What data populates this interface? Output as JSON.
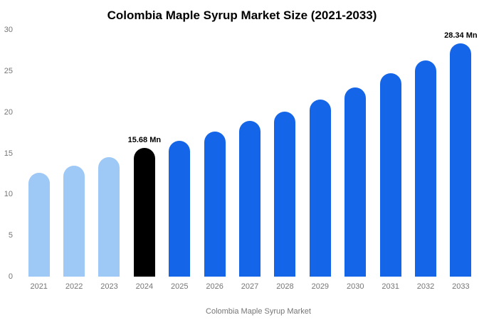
{
  "chart_data": {
    "type": "bar",
    "title": "Colombia Maple Syrup Market Size (2021-2033)",
    "categories": [
      "2021",
      "2022",
      "2023",
      "2024",
      "2025",
      "2026",
      "2027",
      "2028",
      "2029",
      "2030",
      "2031",
      "2032",
      "2033"
    ],
    "values": [
      12.6,
      13.5,
      14.5,
      15.68,
      16.5,
      17.6,
      18.9,
      20.1,
      21.5,
      23.0,
      24.7,
      26.3,
      28.34
    ],
    "bar_labels": [
      "",
      "",
      "",
      "15.68 Mn",
      "",
      "",
      "",
      "",
      "",
      "",
      "",
      "",
      "28.34 Mn"
    ],
    "bar_colors": [
      "#9ec9f6",
      "#9ec9f6",
      "#9ec9f6",
      "#000000",
      "#1565e8",
      "#1565e8",
      "#1565e8",
      "#1565e8",
      "#1565e8",
      "#1565e8",
      "#1565e8",
      "#1565e8",
      "#1565e8"
    ],
    "colors": {
      "historical": "#9ec9f6",
      "base_year": "#000000",
      "forecast": "#1565e8"
    },
    "xlabel": "",
    "ylabel": "",
    "ylim": [
      0,
      30
    ],
    "yticks": [
      0,
      5,
      10,
      15,
      20,
      25,
      30
    ],
    "grid": false,
    "legend_position": "bottom"
  },
  "legend": {
    "label": "Colombia Maple Syrup Market",
    "swatch_color": "#9ec9f6"
  }
}
